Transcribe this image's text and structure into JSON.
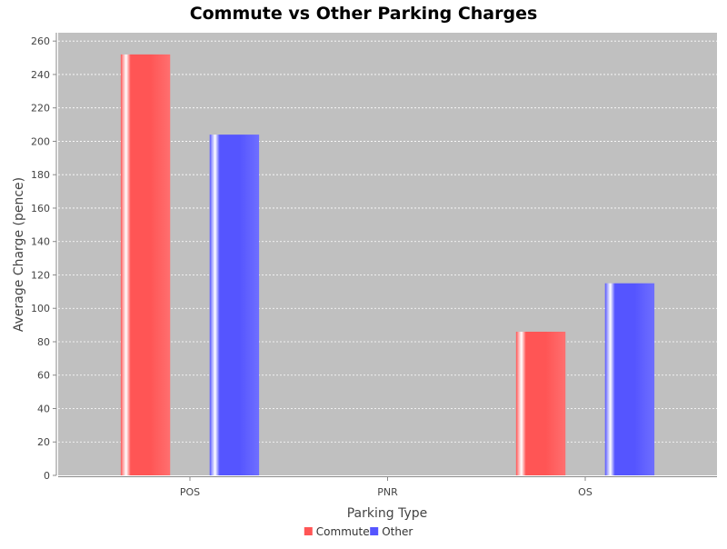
{
  "chart_data": {
    "type": "bar",
    "title": "Commute vs Other Parking Charges",
    "xlabel": "Parking Type",
    "ylabel": "Average Charge (pence)",
    "categories": [
      "POS",
      "PNR",
      "OS"
    ],
    "series": [
      {
        "name": "Commute",
        "values": [
          252,
          0,
          86
        ],
        "color": "#ff5555"
      },
      {
        "name": "Other",
        "values": [
          204,
          0,
          115
        ],
        "color": "#5555ff"
      }
    ],
    "ylim": [
      0,
      265
    ],
    "yticks": [
      0,
      20,
      40,
      60,
      80,
      100,
      120,
      140,
      160,
      180,
      200,
      220,
      240,
      260
    ],
    "grid": true,
    "legend_position": "bottom-center",
    "plot_background": "#c0c0c0"
  }
}
